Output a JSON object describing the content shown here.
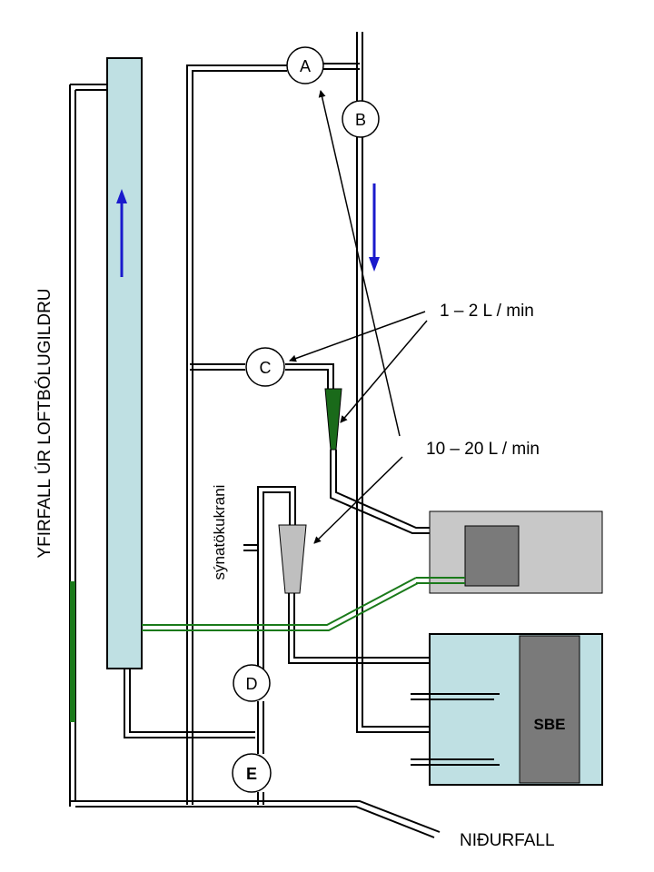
{
  "labels": {
    "overflow_vertical": "YFIRFALL ÚR LOFTBÓLUGILDRU",
    "sample_tap": "sýnatökukrani",
    "flow_low": "1 – 2 L / min",
    "flow_high": "10 – 20 L / min",
    "drain": "NIÐURFALL",
    "sbe_unit": "SBE"
  },
  "valves": {
    "a": "A",
    "b": "B",
    "c": "C",
    "d": "D",
    "e": "E"
  },
  "colors": {
    "column_fill": "#bfe0e3",
    "green_line": "#1a7a1a",
    "arrow_blue": "#1a1acc",
    "valve_e_text": "#1a9a9a",
    "cone_grey": "#bfbfbf",
    "box_grey": "#c8c8c8",
    "box_dark": "#7a7a7a",
    "sbe_dark": "#7a7a7a"
  }
}
